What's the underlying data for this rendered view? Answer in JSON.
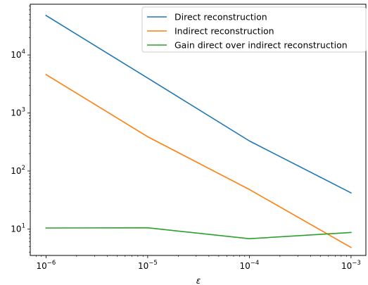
{
  "chart_data": {
    "type": "line",
    "x_scale": "log",
    "y_scale": "log",
    "x": [
      1e-06,
      1e-05,
      0.0001,
      0.001
    ],
    "series": [
      {
        "name": "Direct reconstruction",
        "color": "#1f77b4",
        "values": [
          48000,
          4000,
          330,
          42
        ]
      },
      {
        "name": "Indirect reconstruction",
        "color": "#ff7f0e",
        "values": [
          4600,
          390,
          48,
          4.8
        ]
      },
      {
        "name": "Gain direct over indirect reconstruction",
        "color": "#2ca02c",
        "values": [
          10.4,
          10.5,
          6.8,
          8.7
        ]
      }
    ],
    "xlabel": "ε",
    "ylabel": "",
    "title": "",
    "xlim": [
      7e-07,
      0.0014
    ],
    "ylim": [
      3.5,
      75000
    ],
    "x_ticks": [
      {
        "value": 1e-06,
        "base": "10",
        "exp": "−6"
      },
      {
        "value": 1e-05,
        "base": "10",
        "exp": "−5"
      },
      {
        "value": 0.0001,
        "base": "10",
        "exp": "−4"
      },
      {
        "value": 0.001,
        "base": "10",
        "exp": "−3"
      }
    ],
    "y_ticks": [
      {
        "value": 10,
        "base": "10",
        "exp": "1"
      },
      {
        "value": 100,
        "base": "10",
        "exp": "2"
      },
      {
        "value": 1000,
        "base": "10",
        "exp": "3"
      },
      {
        "value": 10000,
        "base": "10",
        "exp": "4"
      }
    ],
    "grid": false,
    "legend_position": "upper-right"
  }
}
